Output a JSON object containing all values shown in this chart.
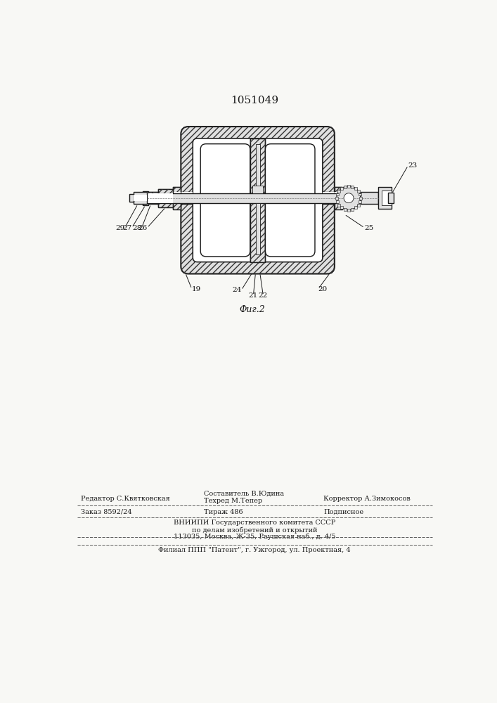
{
  "title": "1051049",
  "fig_label": "Фиг.2",
  "footer_line1_left": "Редактор С.Квятковская",
  "footer_compose": "Составитель В.Юдина",
  "footer_tech": "Техред М.Тепер",
  "footer_correct": "Корректор А.Зимокосов",
  "footer_order": "Заказ 8592/24",
  "footer_tirazh": "Тираж 486",
  "footer_podp": "Подписное",
  "footer_vniip": "ВНИИПИ Государственного комитета СССР",
  "footer_dela": "по делам изобретений и открытий",
  "footer_addr": "113035, Москва, Ж-35, Раушская наб., д. 4/5",
  "footer_filial": "Филиал ППП \"Патент\", г. Ужгород, ул. Проектная, 4",
  "bg_color": "#f8f8f5",
  "line_color": "#1a1a1a",
  "hatch_color": "#333333",
  "white_fill": "#ffffff",
  "gray_fill": "#e0e0e0",
  "dark_gray": "#b0b0b0"
}
